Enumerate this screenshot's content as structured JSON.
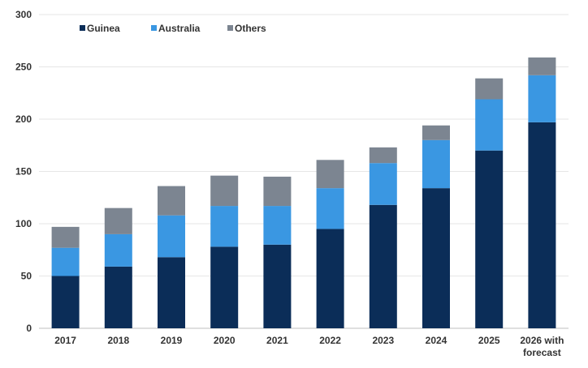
{
  "chart_data": {
    "type": "bar",
    "stacked": true,
    "categories": [
      "2017",
      "2018",
      "2019",
      "2020",
      "2021",
      "2022",
      "2023",
      "2024",
      "2025",
      "2026 with forecast"
    ],
    "series": [
      {
        "name": "Guinea",
        "color": "#0b2d58",
        "values": [
          50,
          59,
          68,
          78,
          80,
          95,
          118,
          134,
          170,
          197
        ]
      },
      {
        "name": "Australia",
        "color": "#3a97e2",
        "values": [
          27,
          31,
          40,
          39,
          37,
          39,
          40,
          46,
          49,
          45
        ]
      },
      {
        "name": "Others",
        "color": "#7c8591",
        "values": [
          20,
          25,
          28,
          29,
          28,
          27,
          15,
          14,
          20,
          17
        ]
      }
    ],
    "yticks": [
      "0",
      "50",
      "100",
      "150",
      "200",
      "250",
      "300"
    ],
    "ylim": [
      0,
      300
    ],
    "grid": "horizontal",
    "legend_position": "top-left"
  }
}
